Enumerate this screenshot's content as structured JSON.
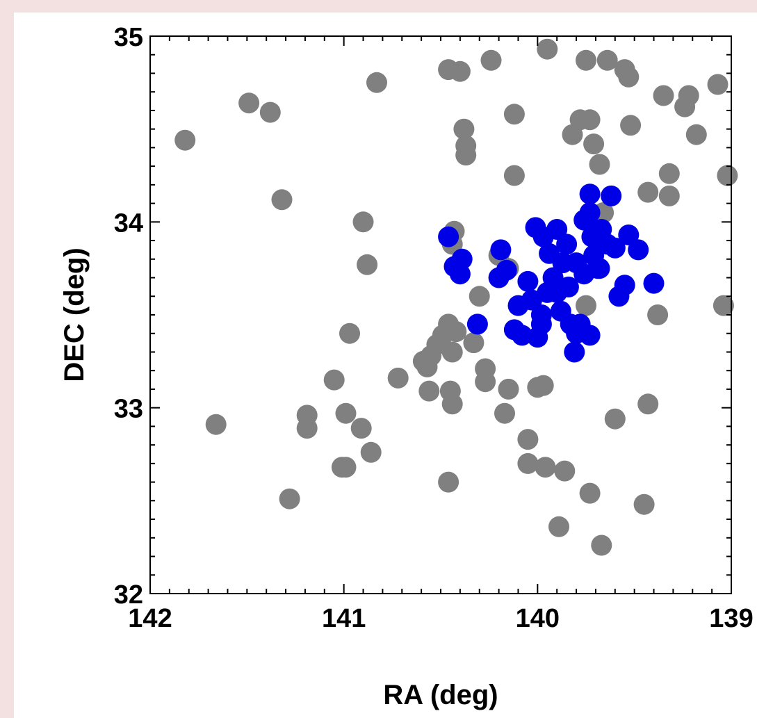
{
  "chart_data": {
    "type": "scatter",
    "title": "",
    "xlabel": "RA (deg)",
    "ylabel": "DEC (deg)",
    "xlim": [
      142,
      139
    ],
    "ylim": [
      32,
      35
    ],
    "x_ticks": [
      142,
      141,
      140,
      139
    ],
    "y_ticks": [
      32,
      33,
      34,
      35
    ],
    "x_reversed": true,
    "grid": false,
    "legend": "none",
    "series": [
      {
        "color": "#808080",
        "points": [
          [
            141.82,
            34.44
          ],
          [
            141.49,
            34.64
          ],
          [
            141.38,
            34.59
          ],
          [
            141.32,
            34.12
          ],
          [
            141.66,
            32.91
          ],
          [
            141.28,
            32.51
          ],
          [
            141.19,
            32.96
          ],
          [
            141.19,
            32.89
          ],
          [
            141.05,
            33.15
          ],
          [
            140.99,
            32.97
          ],
          [
            140.99,
            32.68
          ],
          [
            141.01,
            32.68
          ],
          [
            140.97,
            33.4
          ],
          [
            140.91,
            32.89
          ],
          [
            140.9,
            34.0
          ],
          [
            140.88,
            33.77
          ],
          [
            140.86,
            32.76
          ],
          [
            140.83,
            34.75
          ],
          [
            140.72,
            33.16
          ],
          [
            140.57,
            33.22
          ],
          [
            140.55,
            33.28
          ],
          [
            140.52,
            33.34
          ],
          [
            140.49,
            33.39
          ],
          [
            140.46,
            33.45
          ],
          [
            140.44,
            33.3
          ],
          [
            140.42,
            33.41
          ],
          [
            140.59,
            33.25
          ],
          [
            140.56,
            33.09
          ],
          [
            140.45,
            33.09
          ],
          [
            140.44,
            33.02
          ],
          [
            140.46,
            34.82
          ],
          [
            140.4,
            34.81
          ],
          [
            140.43,
            33.95
          ],
          [
            140.44,
            33.88
          ],
          [
            140.46,
            32.6
          ],
          [
            140.38,
            34.5
          ],
          [
            140.37,
            34.41
          ],
          [
            140.37,
            34.36
          ],
          [
            140.33,
            33.35
          ],
          [
            140.3,
            33.6
          ],
          [
            140.27,
            33.21
          ],
          [
            140.27,
            33.14
          ],
          [
            140.24,
            34.87
          ],
          [
            140.15,
            33.1
          ],
          [
            140.17,
            32.97
          ],
          [
            140.2,
            33.82
          ],
          [
            140.15,
            33.75
          ],
          [
            140.12,
            34.58
          ],
          [
            140.12,
            34.25
          ],
          [
            140.05,
            32.83
          ],
          [
            140.05,
            32.7
          ],
          [
            140.0,
            33.11
          ],
          [
            139.97,
            33.12
          ],
          [
            139.96,
            32.68
          ],
          [
            139.95,
            34.93
          ],
          [
            139.92,
            33.65
          ],
          [
            139.89,
            32.36
          ],
          [
            139.86,
            32.66
          ],
          [
            139.82,
            34.47
          ],
          [
            139.78,
            34.55
          ],
          [
            139.75,
            34.87
          ],
          [
            139.75,
            33.55
          ],
          [
            139.73,
            32.54
          ],
          [
            139.71,
            34.42
          ],
          [
            139.68,
            34.31
          ],
          [
            139.73,
            34.55
          ],
          [
            139.66,
            34.05
          ],
          [
            139.67,
            32.26
          ],
          [
            139.64,
            34.87
          ],
          [
            139.6,
            32.94
          ],
          [
            139.52,
            34.52
          ],
          [
            139.53,
            34.78
          ],
          [
            139.55,
            34.82
          ],
          [
            139.45,
            32.48
          ],
          [
            139.43,
            34.16
          ],
          [
            139.38,
            33.5
          ],
          [
            139.43,
            33.02
          ],
          [
            139.35,
            34.68
          ],
          [
            139.32,
            34.26
          ],
          [
            139.32,
            34.14
          ],
          [
            139.22,
            34.68
          ],
          [
            139.24,
            34.62
          ],
          [
            139.18,
            34.47
          ],
          [
            139.07,
            34.74
          ],
          [
            139.04,
            33.55
          ],
          [
            139.02,
            34.25
          ]
        ]
      },
      {
        "color": "#0000e6",
        "points": [
          [
            140.46,
            33.92
          ],
          [
            140.43,
            33.76
          ],
          [
            140.4,
            33.72
          ],
          [
            140.39,
            33.8
          ],
          [
            140.31,
            33.45
          ],
          [
            140.19,
            33.85
          ],
          [
            140.2,
            33.7
          ],
          [
            140.16,
            33.74
          ],
          [
            140.1,
            33.55
          ],
          [
            140.05,
            33.68
          ],
          [
            140.01,
            33.97
          ],
          [
            139.97,
            33.92
          ],
          [
            140.0,
            33.38
          ],
          [
            139.98,
            33.45
          ],
          [
            139.98,
            33.5
          ],
          [
            139.95,
            33.62
          ],
          [
            139.92,
            33.7
          ],
          [
            139.9,
            33.96
          ],
          [
            139.88,
            33.52
          ],
          [
            139.87,
            33.78
          ],
          [
            139.85,
            33.88
          ],
          [
            139.83,
            33.45
          ],
          [
            139.84,
            33.65
          ],
          [
            139.8,
            33.78
          ],
          [
            139.76,
            34.01
          ],
          [
            139.72,
            33.92
          ],
          [
            139.73,
            34.05
          ],
          [
            139.71,
            33.82
          ],
          [
            139.69,
            33.75
          ],
          [
            139.76,
            33.72
          ],
          [
            139.78,
            33.45
          ],
          [
            139.8,
            33.4
          ],
          [
            139.81,
            33.3
          ],
          [
            139.73,
            33.39
          ],
          [
            139.68,
            33.75
          ],
          [
            139.67,
            33.96
          ],
          [
            139.64,
            33.88
          ],
          [
            139.62,
            34.14
          ],
          [
            139.73,
            34.15
          ],
          [
            139.6,
            33.86
          ],
          [
            139.58,
            33.6
          ],
          [
            139.55,
            33.66
          ],
          [
            139.53,
            33.93
          ],
          [
            139.48,
            33.85
          ],
          [
            139.4,
            33.67
          ],
          [
            139.9,
            33.62
          ],
          [
            139.94,
            33.83
          ],
          [
            140.08,
            33.39
          ],
          [
            140.12,
            33.42
          ],
          [
            140.03,
            33.58
          ]
        ]
      }
    ]
  }
}
